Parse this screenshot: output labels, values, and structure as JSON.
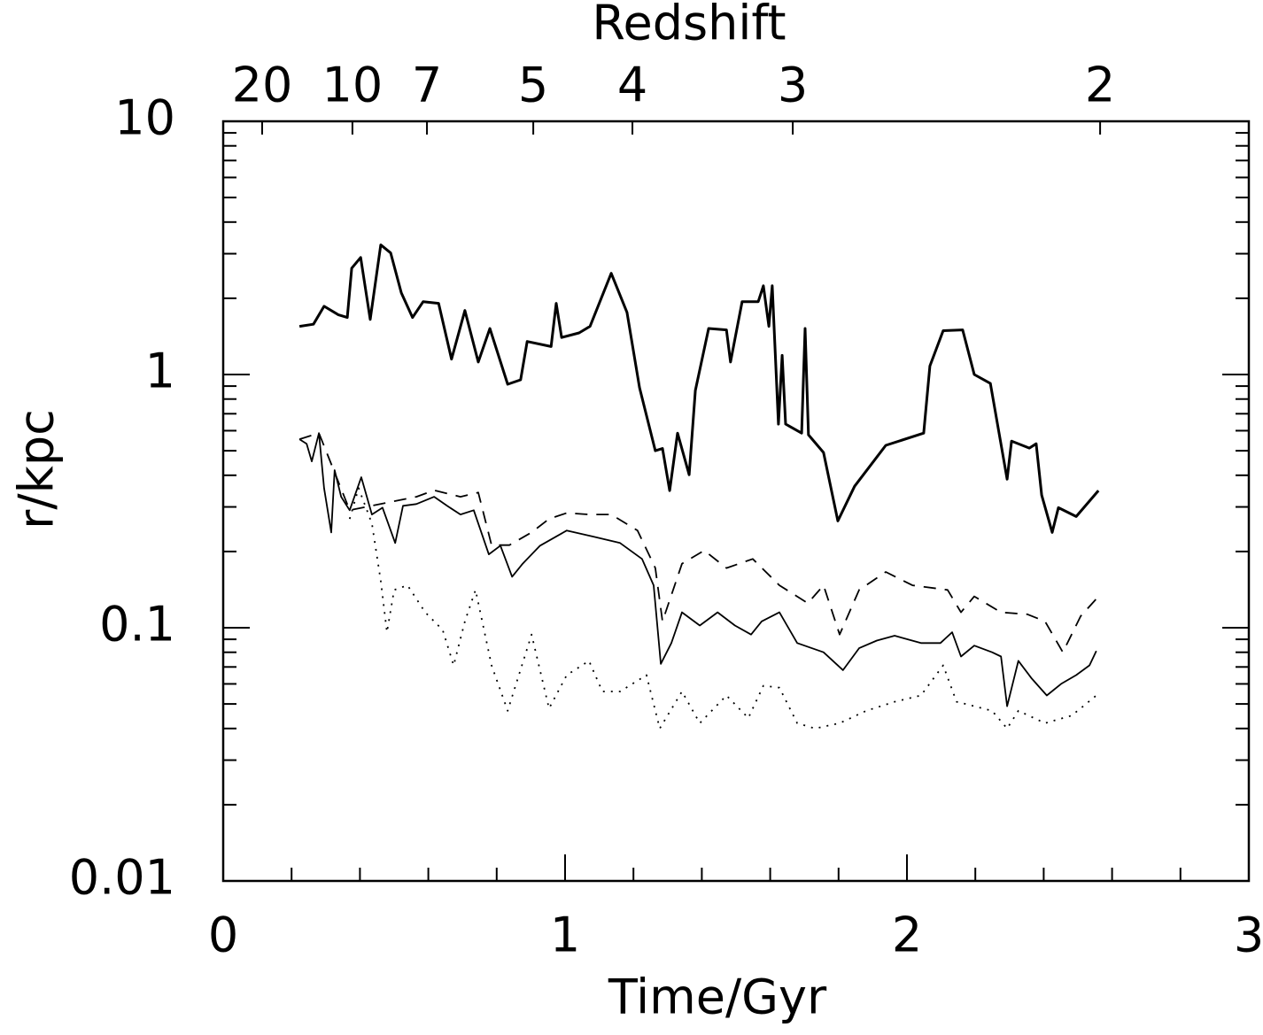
{
  "chart_data": {
    "type": "line",
    "xlabel": "Time/Gyr",
    "ylabel": "r/kpc",
    "x2label": "Redshift",
    "xlim": [
      0,
      3
    ],
    "xticks": [
      0,
      1,
      2,
      3
    ],
    "xminorticks": [
      0.2,
      0.4,
      0.6,
      0.8,
      1.2,
      1.4,
      1.6,
      1.8,
      2.2,
      2.4,
      2.6,
      2.8
    ],
    "ylim": [
      0.01,
      10
    ],
    "yscale": "log",
    "yticks": [
      0.01,
      0.1,
      1,
      10
    ],
    "yminorticks": [
      0.02,
      0.03,
      0.04,
      0.05,
      0.06,
      0.07,
      0.08,
      0.09,
      0.2,
      0.3,
      0.4,
      0.5,
      0.6,
      0.7,
      0.8,
      0.9,
      2,
      3,
      4,
      5,
      6,
      7,
      8,
      9
    ],
    "x2ticks": [
      {
        "value": 0.114,
        "label": "20"
      },
      {
        "value": 0.378,
        "label": "10"
      },
      {
        "value": 0.596,
        "label": "7"
      },
      {
        "value": 0.907,
        "label": "5"
      },
      {
        "value": 1.197,
        "label": "4"
      },
      {
        "value": 1.666,
        "label": "3"
      },
      {
        "value": 2.565,
        "label": "2"
      }
    ],
    "series": [
      {
        "color": "#000000",
        "style": "solid",
        "width": 3,
        "x": [
          0.223,
          0.264,
          0.295,
          0.337,
          0.363,
          0.376,
          0.402,
          0.43,
          0.461,
          0.49,
          0.521,
          0.554,
          0.585,
          0.63,
          0.668,
          0.707,
          0.746,
          0.78,
          0.832,
          0.87,
          0.889,
          0.959,
          0.974,
          0.99,
          1.041,
          1.073,
          1.135,
          1.181,
          1.218,
          1.264,
          1.285,
          1.306,
          1.329,
          1.363,
          1.381,
          1.42,
          1.472,
          1.484,
          1.518,
          1.565,
          1.58,
          1.596,
          1.606,
          1.624,
          1.635,
          1.645,
          1.692,
          1.702,
          1.712,
          1.756,
          1.798,
          1.847,
          1.938,
          2.049,
          2.067,
          2.106,
          2.163,
          2.197,
          2.244,
          2.293,
          2.306,
          2.358,
          2.378,
          2.394,
          2.425,
          2.443,
          2.495,
          2.56
        ],
        "values": [
          1.55,
          1.58,
          1.86,
          1.72,
          1.68,
          2.63,
          2.9,
          1.65,
          3.25,
          3.02,
          2.1,
          1.68,
          1.94,
          1.91,
          1.15,
          1.79,
          1.12,
          1.52,
          0.915,
          0.953,
          1.35,
          1.29,
          1.91,
          1.4,
          1.46,
          1.55,
          2.51,
          1.76,
          0.886,
          0.5,
          0.51,
          0.348,
          0.587,
          0.402,
          0.865,
          1.52,
          1.5,
          1.12,
          1.94,
          1.94,
          2.24,
          1.55,
          2.24,
          0.637,
          1.19,
          0.637,
          0.587,
          1.52,
          0.578,
          0.492,
          0.264,
          0.362,
          0.525,
          0.587,
          1.08,
          1.49,
          1.5,
          1.0,
          0.922,
          0.386,
          0.546,
          0.512,
          0.533,
          0.334,
          0.238,
          0.298,
          0.275,
          0.348
        ]
      },
      {
        "color": "#000000",
        "style": "solid",
        "width": 1.8,
        "x": [
          0.223,
          0.244,
          0.259,
          0.28,
          0.295,
          0.316,
          0.326,
          0.345,
          0.37,
          0.404,
          0.435,
          0.466,
          0.503,
          0.526,
          0.565,
          0.617,
          0.655,
          0.694,
          0.733,
          0.777,
          0.811,
          0.845,
          0.876,
          0.927,
          1.005,
          1.083,
          1.161,
          1.225,
          1.259,
          1.28,
          1.311,
          1.342,
          1.394,
          1.446,
          1.497,
          1.544,
          1.575,
          1.627,
          1.679,
          1.756,
          1.813,
          1.86,
          1.912,
          1.964,
          2.041,
          2.098,
          2.132,
          2.158,
          2.197,
          2.249,
          2.275,
          2.293,
          2.326,
          2.365,
          2.409,
          2.451,
          2.495,
          2.534,
          2.554
        ],
        "values": [
          0.555,
          0.533,
          0.454,
          0.587,
          0.356,
          0.238,
          0.419,
          0.329,
          0.291,
          0.393,
          0.28,
          0.298,
          0.216,
          0.303,
          0.308,
          0.329,
          0.303,
          0.28,
          0.291,
          0.195,
          0.211,
          0.159,
          0.179,
          0.211,
          0.242,
          0.229,
          0.216,
          0.187,
          0.147,
          0.072,
          0.087,
          0.115,
          0.102,
          0.115,
          0.102,
          0.094,
          0.106,
          0.115,
          0.087,
          0.08,
          0.068,
          0.083,
          0.089,
          0.093,
          0.087,
          0.087,
          0.096,
          0.077,
          0.085,
          0.08,
          0.077,
          0.049,
          0.074,
          0.063,
          0.054,
          0.06,
          0.065,
          0.071,
          0.081
        ]
      },
      {
        "color": "#000000",
        "style": "dashed",
        "width": 1.8,
        "x": [
          0.223,
          0.28,
          0.37,
          0.565,
          0.617,
          0.694,
          0.746,
          0.785,
          0.837,
          0.902,
          0.953,
          1.005,
          1.07,
          1.135,
          1.212,
          1.264,
          1.285,
          1.342,
          1.407,
          1.472,
          1.549,
          1.627,
          1.71,
          1.756,
          1.803,
          1.86,
          1.938,
          2.016,
          2.119,
          2.158,
          2.197,
          2.275,
          2.352,
          2.404,
          2.456,
          2.508,
          2.554
        ],
        "values": [
          0.555,
          0.587,
          0.291,
          0.329,
          0.349,
          0.329,
          0.342,
          0.212,
          0.212,
          0.238,
          0.269,
          0.284,
          0.28,
          0.28,
          0.242,
          0.172,
          0.106,
          0.179,
          0.202,
          0.172,
          0.187,
          0.147,
          0.125,
          0.147,
          0.094,
          0.141,
          0.166,
          0.147,
          0.141,
          0.115,
          0.133,
          0.115,
          0.113,
          0.106,
          0.08,
          0.111,
          0.13
        ]
      },
      {
        "color": "#000000",
        "style": "dotted",
        "width": 1.8,
        "x": [
          0.37,
          0.396,
          0.435,
          0.461,
          0.479,
          0.5,
          0.539,
          0.591,
          0.642,
          0.674,
          0.707,
          0.738,
          0.785,
          0.832,
          0.902,
          0.953,
          1.005,
          1.07,
          1.109,
          1.161,
          1.238,
          1.277,
          1.342,
          1.394,
          1.472,
          1.536,
          1.58,
          1.627,
          1.679,
          1.731,
          1.803,
          1.881,
          1.964,
          2.041,
          2.106,
          2.145,
          2.197,
          2.249,
          2.293,
          2.326,
          2.404,
          2.482,
          2.554
        ],
        "values": [
          0.269,
          0.356,
          0.258,
          0.153,
          0.096,
          0.141,
          0.147,
          0.115,
          0.098,
          0.071,
          0.106,
          0.141,
          0.071,
          0.047,
          0.094,
          0.048,
          0.065,
          0.074,
          0.056,
          0.056,
          0.065,
          0.04,
          0.056,
          0.042,
          0.054,
          0.044,
          0.059,
          0.058,
          0.042,
          0.04,
          0.042,
          0.047,
          0.051,
          0.054,
          0.071,
          0.051,
          0.049,
          0.047,
          0.04,
          0.047,
          0.042,
          0.045,
          0.054
        ]
      }
    ]
  }
}
